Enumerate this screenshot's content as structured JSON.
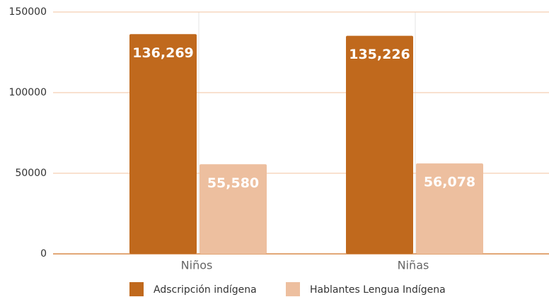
{
  "chart_data": {
    "type": "bar",
    "categories": [
      "Niños",
      "Niñas"
    ],
    "series": [
      {
        "name": "Adscripción indígena",
        "color": "#c0691d",
        "values": [
          136269,
          135226
        ],
        "value_labels": [
          "136,269",
          "135,226"
        ]
      },
      {
        "name": "Hablantes Lengua Indígena",
        "color": "#edbf9f",
        "values": [
          55580,
          56078
        ],
        "value_labels": [
          "55,580",
          "56,078"
        ]
      }
    ],
    "ylim": [
      0,
      150000
    ],
    "yticks": [
      0,
      50000,
      100000,
      150000
    ],
    "grid": true
  }
}
